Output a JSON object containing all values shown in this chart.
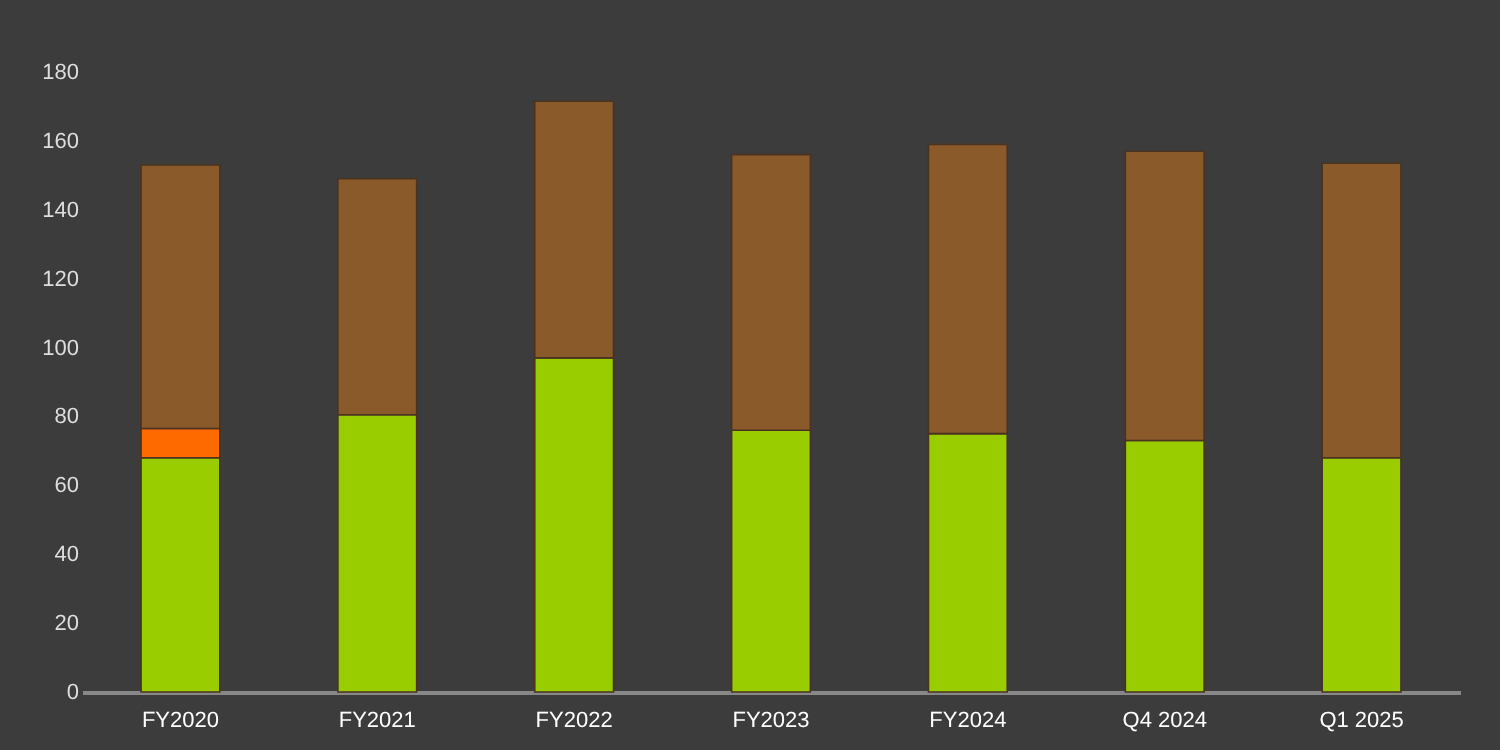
{
  "chart_data": {
    "type": "bar",
    "stacked": true,
    "categories": [
      "FY2020",
      "FY2021",
      "FY2022",
      "FY2023",
      "FY2024",
      "Q4 2024",
      "Q1 2025"
    ],
    "series": [
      {
        "color": "#9acd00",
        "values": [
          68,
          80.5,
          97,
          76,
          75,
          73,
          68
        ]
      },
      {
        "color": "#ff6a00",
        "values": [
          8.5,
          null,
          null,
          null,
          null,
          null,
          null
        ]
      },
      {
        "color": "#8b5a2b",
        "values": [
          76.5,
          68.5,
          74.5,
          80,
          84,
          84,
          85.5
        ]
      }
    ],
    "ylim": [
      0,
      180
    ],
    "yticks": [
      0,
      20,
      40,
      60,
      80,
      100,
      120,
      140,
      160,
      180
    ],
    "grid": false,
    "legend": false
  }
}
